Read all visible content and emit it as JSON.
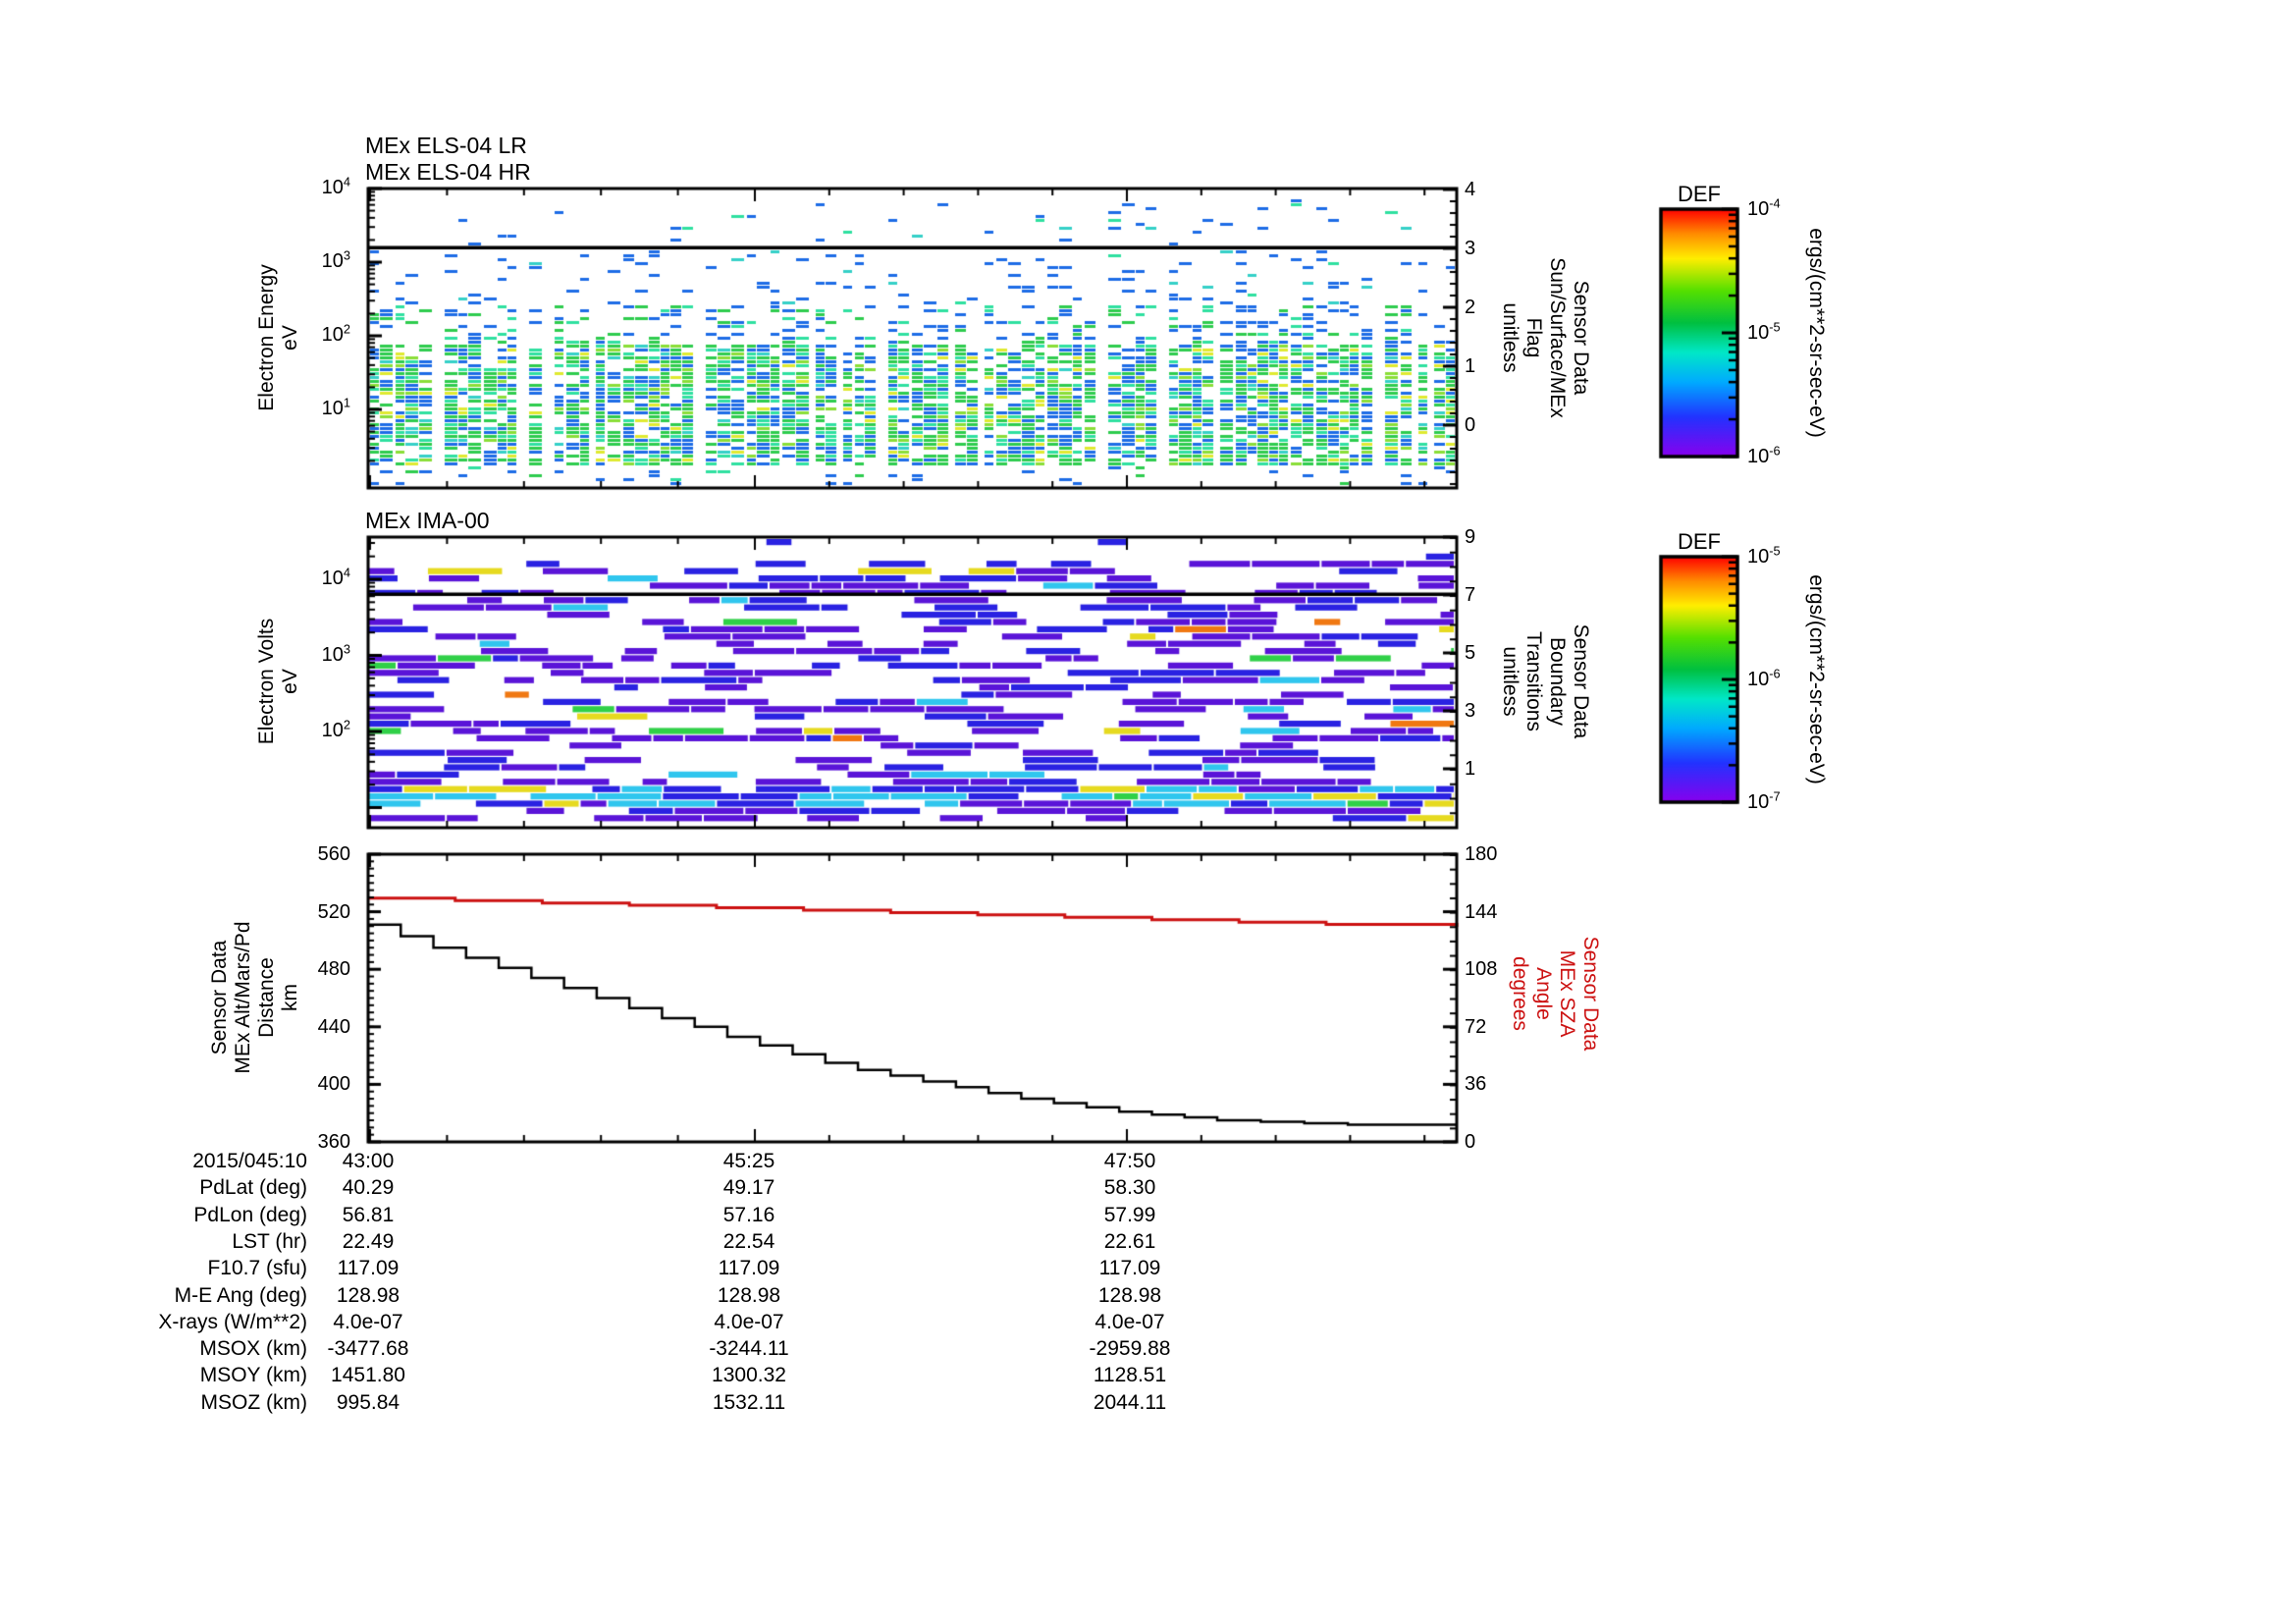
{
  "page": {
    "background": "#ffffff"
  },
  "panels": {
    "els": {
      "titles": [
        "MEx ELS-04 LR",
        "MEx ELS-04 HR"
      ],
      "ylabel_lines": [
        "Electron Energy",
        "eV"
      ],
      "yticks": [
        "10^4",
        "10^3",
        "10^2",
        "10^1"
      ],
      "right_label_lines": [
        "Sensor Data",
        "Sun/Surface/MEx",
        "Flag",
        "unitless"
      ],
      "right_ticks": [
        "4",
        "3",
        "2",
        "1",
        "0"
      ]
    },
    "ima": {
      "title": "MEx IMA-00",
      "ylabel_lines": [
        "Electron Volts",
        "eV"
      ],
      "yticks": [
        "10^4",
        "10^3",
        "10^2"
      ],
      "right_label_lines": [
        "Sensor Data",
        "Boundary",
        "Transitions",
        "unitless"
      ],
      "right_ticks": [
        "9",
        "7",
        "5",
        "3",
        "1"
      ]
    },
    "alt": {
      "ylabel_lines": [
        "Sensor Data",
        "MEx Alt/Mars/Pd",
        "Distance",
        "km"
      ],
      "yticks": [
        "560",
        "520",
        "480",
        "440",
        "400",
        "360"
      ],
      "right_label_lines": [
        "Sensor Data",
        "MEx SZA",
        "Angle",
        "degrees"
      ],
      "right_ticks": [
        "180",
        "144",
        "108",
        "72",
        "36",
        "0"
      ],
      "xticks": [
        "43:00",
        "45:25",
        "47:50"
      ]
    }
  },
  "colorbars": [
    {
      "title": "DEF",
      "ticks": [
        "10^-4",
        "10^-5",
        "10^-6"
      ],
      "unit": "ergs/(cm**2-sr-sec-eV)"
    },
    {
      "title": "DEF",
      "ticks": [
        "10^-5",
        "10^-6",
        "10^-7"
      ],
      "unit": "ergs/(cm**2-sr-sec-eV)"
    }
  ],
  "table": {
    "rows": [
      {
        "label": "2015/045:10",
        "values": [
          "43:00",
          "45:25",
          "47:50"
        ]
      },
      {
        "label": "PdLat (deg)",
        "values": [
          "40.29",
          "49.17",
          "58.30"
        ]
      },
      {
        "label": "PdLon (deg)",
        "values": [
          "56.81",
          "57.16",
          "57.99"
        ]
      },
      {
        "label": "LST (hr)",
        "values": [
          "22.49",
          "22.54",
          "22.61"
        ]
      },
      {
        "label": "F10.7 (sfu)",
        "values": [
          "117.09",
          "117.09",
          "117.09"
        ]
      },
      {
        "label": "M-E Ang (deg)",
        "values": [
          "128.98",
          "128.98",
          "128.98"
        ]
      },
      {
        "label": "X-rays (W/m**2)",
        "values": [
          "4.0e-07",
          "4.0e-07",
          "4.0e-07"
        ]
      },
      {
        "label": "MSOX (km)",
        "values": [
          "-3477.68",
          "-3244.11",
          "-2959.88"
        ]
      },
      {
        "label": "MSOY (km)",
        "values": [
          "1451.80",
          "1300.32",
          "1128.51"
        ]
      },
      {
        "label": "MSOZ (km)",
        "values": [
          "995.84",
          "1532.11",
          "2044.11"
        ]
      }
    ]
  },
  "colors": {
    "axis": "#000000",
    "sza_line": "#cc1111",
    "alt_line": "#000000",
    "rainbow": [
      "#ff0000",
      "#ff8c00",
      "#ffee00",
      "#55e000",
      "#00c040",
      "#00e8c8",
      "#00aaff",
      "#2233ff",
      "#8800ee"
    ],
    "els_cells": [
      "#1d6ce6",
      "#2ecc4e",
      "#2fe0a0",
      "#8ade38",
      "#dfea30",
      "#35d0c8"
    ],
    "ima_cells": [
      "#5a14d8",
      "#2a22e2",
      "#30c6ee",
      "#30d048",
      "#e6da20",
      "#f07812",
      "#e83018"
    ]
  },
  "chart_data": [
    {
      "type": "heatmap",
      "title": "MEx ELS-04 LR / MEx ELS-04 HR",
      "ylabel": "Electron Energy eV",
      "yscale": "log",
      "ytick_labels": [
        "10^4",
        "10^3",
        "10^2",
        "10^1"
      ],
      "xtick_labels": [
        "43:00",
        "45:25",
        "47:50"
      ],
      "right_axis": {
        "label": "Sensor Data Sun/Surface/MEx Flag unitless",
        "ticks": [
          4,
          3,
          2,
          1,
          0
        ]
      },
      "flag_line_value_eV": 1500,
      "colorbar": {
        "title": "DEF",
        "unit": "ergs/(cm**2-sr-sec-eV)",
        "ticks": [
          "10^-4",
          "10^-5",
          "10^-6"
        ]
      },
      "description": "sparse blue dashes above 1.5e3 eV; dense blue/green/cyan mosaic ~5-300 eV arranged in vertical column clusters separated by white gaps"
    },
    {
      "type": "heatmap",
      "title": "MEx IMA-00",
      "ylabel": "Electron Volts eV",
      "yscale": "log",
      "ytick_labels": [
        "10^4",
        "10^3",
        "10^2"
      ],
      "xtick_labels": [
        "43:00",
        "45:25",
        "47:50"
      ],
      "right_axis": {
        "label": "Sensor Data Boundary Transitions unitless",
        "ticks": [
          9,
          7,
          5,
          3,
          1
        ]
      },
      "flag_line_value_eV": 6300,
      "colorbar": {
        "title": "DEF",
        "unit": "ergs/(cm**2-sr-sec-eV)",
        "ticks": [
          "10^-5",
          "10^-6",
          "10^-7"
        ]
      },
      "description": "wide indigo/blue blocks at all energies; bright cyan horizontal band near bottom; sporadic cyan/green/yellow/orange streaks"
    },
    {
      "type": "line",
      "ylabel_left": "Sensor Data MEx Alt/Mars/Pd Distance km",
      "ylim_left": [
        360,
        560
      ],
      "ylabel_right": "Sensor Data MEx SZA Angle degrees",
      "ylim_right": [
        0,
        180
      ],
      "xtick_labels": [
        "43:00",
        "45:25",
        "47:50"
      ],
      "time_row_label": "2015/045:10",
      "series": [
        {
          "name": "MEx Alt/Mars/Pd Distance (km)",
          "axis": "left",
          "color": "#000000",
          "x_frac": [
            0,
            0.03,
            0.06,
            0.09,
            0.12,
            0.15,
            0.18,
            0.21,
            0.24,
            0.27,
            0.3,
            0.33,
            0.36,
            0.39,
            0.42,
            0.45,
            0.48,
            0.51,
            0.54,
            0.57,
            0.6,
            0.63,
            0.66,
            0.69,
            0.72,
            0.75,
            0.78,
            0.82,
            0.86,
            0.9,
            1.0
          ],
          "y": [
            511,
            503,
            495,
            488,
            481,
            474,
            467,
            460,
            453,
            446,
            440,
            433,
            427,
            421,
            415,
            410,
            406,
            402,
            398,
            394,
            390,
            387,
            384,
            381,
            379,
            377,
            375,
            374,
            373,
            372,
            372
          ]
        },
        {
          "name": "MEx SZA Angle (degrees)",
          "axis": "right",
          "color": "#cc1111",
          "x_frac": [
            0,
            0.08,
            0.16,
            0.24,
            0.32,
            0.4,
            0.48,
            0.56,
            0.64,
            0.72,
            0.8,
            0.88,
            1.0
          ],
          "y": [
            152.5,
            151,
            149.5,
            148,
            146.5,
            145,
            143.5,
            142,
            140.5,
            139,
            137.5,
            136,
            134.5
          ]
        }
      ]
    }
  ]
}
